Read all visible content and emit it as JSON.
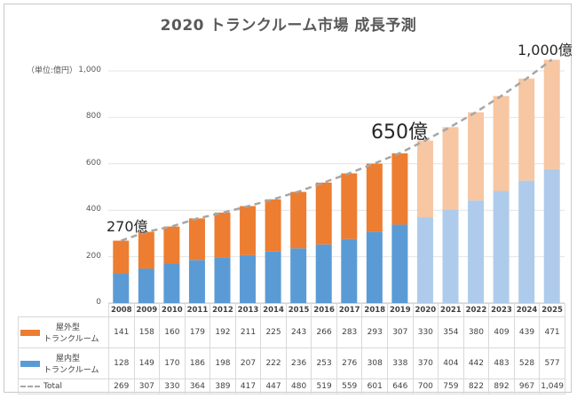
{
  "chart_data": {
    "type": "bar",
    "title": "2020 トランクルーム市場 成長予測",
    "unit_label": "（単位:億円）",
    "ylim": [
      0,
      1000
    ],
    "yticks": [
      "0",
      "200",
      "400",
      "600",
      "800",
      "1,000"
    ],
    "categories": [
      "2008",
      "2009",
      "2010",
      "2011",
      "2012",
      "2013",
      "2014",
      "2015",
      "2016",
      "2017",
      "2018",
      "2019",
      "2020",
      "2021",
      "2022",
      "2023",
      "2024",
      "2025"
    ],
    "forecast_start_index": 12,
    "stacked": true,
    "series": [
      {
        "name": "屋内型トランクルーム",
        "label_line1": "屋内型",
        "label_line2": "トランクルーム",
        "color": "#5b9bd5",
        "forecast_color": "#aecbeb",
        "values": [
          128,
          149,
          170,
          186,
          198,
          207,
          222,
          236,
          253,
          276,
          308,
          338,
          370,
          404,
          442,
          483,
          528,
          577
        ],
        "display": [
          "128",
          "149",
          "170",
          "186",
          "198",
          "207",
          "222",
          "236",
          "253",
          "276",
          "308",
          "338",
          "370",
          "404",
          "442",
          "483",
          "528",
          "577"
        ]
      },
      {
        "name": "屋外型トランクルーム",
        "label_line1": "屋外型",
        "label_line2": "トランクルーム",
        "color": "#ed7d31",
        "forecast_color": "#f7c6a2",
        "values": [
          141,
          158,
          160,
          179,
          192,
          211,
          225,
          243,
          266,
          283,
          293,
          307,
          330,
          354,
          380,
          409,
          439,
          471
        ],
        "display": [
          "141",
          "158",
          "160",
          "179",
          "192",
          "211",
          "225",
          "243",
          "266",
          "283",
          "293",
          "307",
          "330",
          "354",
          "380",
          "409",
          "439",
          "471"
        ]
      },
      {
        "name": "Total",
        "type": "line",
        "style": "dashed",
        "color": "#a6a6a6",
        "values": [
          269,
          307,
          330,
          364,
          389,
          417,
          447,
          480,
          519,
          559,
          601,
          646,
          700,
          759,
          822,
          892,
          967,
          1049
        ],
        "display": [
          "269",
          "307",
          "330",
          "364",
          "389",
          "417",
          "447",
          "480",
          "519",
          "559",
          "601",
          "646",
          "700",
          "759",
          "822",
          "892",
          "967",
          "1,049"
        ]
      }
    ],
    "annotations": {
      "first": "270億",
      "mid": "650億",
      "last": "1,000億"
    }
  }
}
